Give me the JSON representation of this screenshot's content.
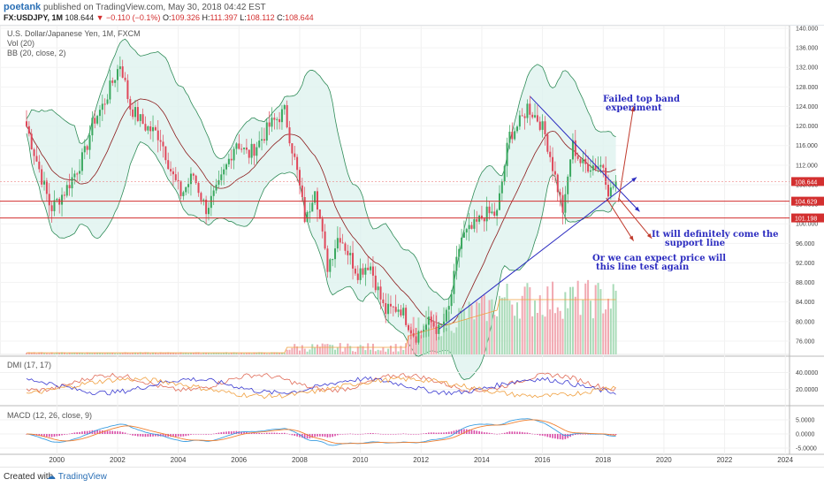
{
  "header": {
    "user": "poetank",
    "published": "published on TradingView.com, May 30, 2018 04:42 EST",
    "symbol": "FX:USDJPY, 1M",
    "price": "108.644",
    "change": "−0.110 (−0.1%)",
    "o_label": "O:",
    "o": "109.326",
    "h_label": "H:",
    "h": "111.397",
    "l_label": "L:",
    "l": "108.112",
    "c_label": "C:",
    "c": "108.644"
  },
  "legend": {
    "title": "U.S. Dollar/Japanese Yen, 1M, FXCM",
    "vol": "Vol (20)",
    "bb": "BB (20, close, 2)",
    "dmi": "DMI (17, 17)",
    "macd": "MACD (12, 26, close, 9)"
  },
  "annotations": {
    "a1_line1": "Failed top band",
    "a1_line2": "experiment",
    "a2_line1": "It will definitely come the",
    "a2_line2": "support line",
    "a3_line1": "Or we can expect price will",
    "a3_line2": "this line test again"
  },
  "footer": {
    "created": "Created with",
    "brand": "TradingView"
  },
  "colors": {
    "up": "#3aa85f",
    "down": "#e0475a",
    "bb_band": "#2e8b57",
    "bb_fill": "#dff3ef",
    "bb_basis": "#8b1a1a",
    "annotation": "#2c2cc0",
    "red_line": "#d32f2f",
    "dmi_plus": "#e06b57",
    "dmi_minus": "#3b3bd1",
    "adx": "#f0a040",
    "macd": "#3b9de0",
    "signal": "#f08030",
    "hist": "#d84aa6"
  },
  "chart_data": {
    "type": "candlestick",
    "x_ticks": [
      "2000",
      "2002",
      "2004",
      "2006",
      "2008",
      "2010",
      "2012",
      "2014",
      "2016",
      "2018",
      "2020",
      "2022",
      "2024"
    ],
    "price_ticks": [
      "140.000",
      "136.000",
      "132.000",
      "128.000",
      "124.000",
      "120.000",
      "116.000",
      "112.000",
      "108.000",
      "104.000",
      "100.000",
      "96.000",
      "92.000",
      "88.000",
      "84.000",
      "80.000",
      "76.000"
    ],
    "ylim": [
      72,
      141
    ],
    "price_labels": [
      "108.644",
      "104.629",
      "101.198"
    ],
    "horizontal_levels": [
      104.629,
      101.198
    ],
    "dmi_ticks": [
      "40.0000",
      "20.0000"
    ],
    "macd_ticks": [
      "5.0000",
      "0.0000",
      "-5.0000"
    ],
    "anchors": [
      [
        1999.0,
        120
      ],
      [
        1999.8,
        103
      ],
      [
        2000.3,
        107
      ],
      [
        2000.9,
        114
      ],
      [
        2001.2,
        121
      ],
      [
        2001.5,
        124
      ],
      [
        2001.9,
        130
      ],
      [
        2002.1,
        133
      ],
      [
        2002.4,
        124
      ],
      [
        2002.9,
        120
      ],
      [
        2003.4,
        118
      ],
      [
        2003.8,
        110
      ],
      [
        2004.1,
        106
      ],
      [
        2004.5,
        110
      ],
      [
        2004.9,
        103
      ],
      [
        2005.3,
        107
      ],
      [
        2005.9,
        117
      ],
      [
        2006.3,
        114
      ],
      [
        2006.7,
        117
      ],
      [
        2007.0,
        120
      ],
      [
        2007.5,
        123
      ],
      [
        2007.9,
        111
      ],
      [
        2008.2,
        100
      ],
      [
        2008.5,
        108
      ],
      [
        2008.9,
        91
      ],
      [
        2009.3,
        98
      ],
      [
        2009.9,
        90
      ],
      [
        2010.3,
        92
      ],
      [
        2010.8,
        82
      ],
      [
        2011.3,
        83
      ],
      [
        2011.8,
        77
      ],
      [
        2012.3,
        80
      ],
      [
        2012.6,
        78
      ],
      [
        2012.9,
        82
      ],
      [
        2013.3,
        97
      ],
      [
        2013.7,
        99
      ],
      [
        2014.1,
        102
      ],
      [
        2014.5,
        102
      ],
      [
        2014.9,
        118
      ],
      [
        2015.3,
        121
      ],
      [
        2015.5,
        124
      ],
      [
        2015.9,
        121
      ],
      [
        2016.1,
        118
      ],
      [
        2016.4,
        110
      ],
      [
        2016.7,
        102
      ],
      [
        2016.9,
        113
      ],
      [
        2017.0,
        116
      ],
      [
        2017.3,
        112
      ],
      [
        2017.7,
        112
      ],
      [
        2018.0,
        112
      ],
      [
        2018.2,
        106
      ],
      [
        2018.4,
        108.6
      ]
    ],
    "drawn_lines": {
      "upper_trend": [
        [
          2015.6,
          126.0
        ],
        [
          2019.2,
          102.5
        ]
      ],
      "lower_trend": [
        [
          2012.6,
          78.5
        ],
        [
          2019.1,
          109.5
        ]
      ],
      "arrow_up": [
        [
          2018.5,
          104.5
        ],
        [
          2019.0,
          124.0
        ]
      ],
      "arrow_down1": [
        [
          2018.5,
          105.3
        ],
        [
          2019.6,
          97.0
        ]
      ],
      "arrow_down2": [
        [
          2018.1,
          105.3
        ],
        [
          2019.0,
          96.5
        ]
      ]
    }
  }
}
